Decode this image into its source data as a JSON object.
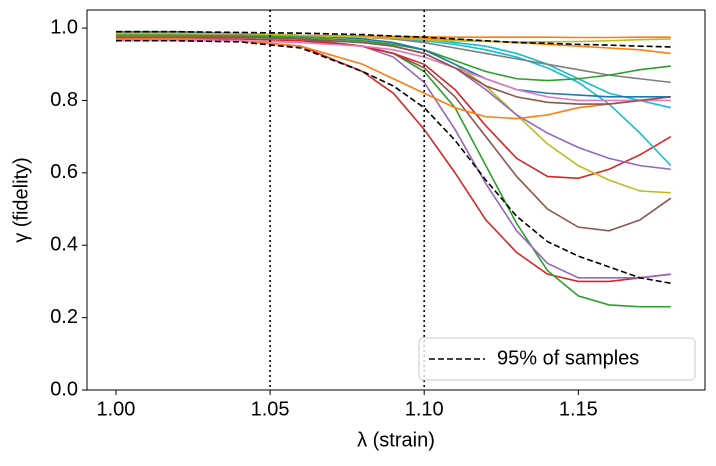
{
  "chart_data": {
    "type": "line",
    "xlabel": "λ (strain)",
    "ylabel": "γ (fidelity)",
    "x": [
      1.0,
      1.02,
      1.04,
      1.06,
      1.08,
      1.09,
      1.1,
      1.11,
      1.12,
      1.13,
      1.14,
      1.15,
      1.16,
      1.17,
      1.18
    ],
    "xlim": [
      0.9906,
      1.1911
    ],
    "ylim": [
      0,
      1.05
    ],
    "xticks": [
      {
        "value": 1.0,
        "label": "1.00"
      },
      {
        "value": 1.05,
        "label": "1.05"
      },
      {
        "value": 1.1,
        "label": "1.10"
      },
      {
        "value": 1.15,
        "label": "1.15"
      }
    ],
    "yticks": [
      {
        "value": 0,
        "label": "0.0"
      },
      {
        "value": 0.2,
        "label": "0.2"
      },
      {
        "value": 0.4,
        "label": "0.4"
      },
      {
        "value": 0.6,
        "label": "0.6"
      },
      {
        "value": 0.8,
        "label": "0.8"
      },
      {
        "value": 1.0,
        "label": "1.0"
      }
    ],
    "vlines": [
      1.05,
      1.1
    ],
    "legend": "lower right",
    "series": [
      {
        "color": "#d62728",
        "values": [
          0.97,
          0.97,
          0.965,
          0.95,
          0.88,
          0.82,
          0.72,
          0.6,
          0.47,
          0.38,
          0.32,
          0.3,
          0.3,
          0.31,
          0.32
        ]
      },
      {
        "color": "#2ca02c",
        "values": [
          0.98,
          0.98,
          0.978,
          0.97,
          0.95,
          0.93,
          0.88,
          0.78,
          0.62,
          0.46,
          0.33,
          0.26,
          0.235,
          0.23,
          0.23
        ]
      },
      {
        "color": "#9467bd",
        "values": [
          0.98,
          0.98,
          0.978,
          0.97,
          0.95,
          0.92,
          0.85,
          0.72,
          0.57,
          0.44,
          0.35,
          0.31,
          0.31,
          0.31,
          0.32
        ]
      },
      {
        "color": "#8c564b",
        "values": [
          0.98,
          0.98,
          0.975,
          0.97,
          0.95,
          0.93,
          0.89,
          0.81,
          0.7,
          0.59,
          0.5,
          0.45,
          0.44,
          0.47,
          0.53
        ]
      },
      {
        "color": "#d62728",
        "values": [
          0.97,
          0.97,
          0.97,
          0.965,
          0.95,
          0.93,
          0.9,
          0.83,
          0.73,
          0.64,
          0.59,
          0.585,
          0.61,
          0.65,
          0.7
        ]
      },
      {
        "color": "#bcbd22",
        "values": [
          0.98,
          0.98,
          0.978,
          0.975,
          0.965,
          0.955,
          0.94,
          0.9,
          0.84,
          0.76,
          0.68,
          0.62,
          0.58,
          0.55,
          0.545
        ]
      },
      {
        "color": "#9467bd",
        "values": [
          0.98,
          0.98,
          0.98,
          0.97,
          0.96,
          0.95,
          0.93,
          0.89,
          0.83,
          0.76,
          0.71,
          0.67,
          0.64,
          0.62,
          0.61
        ]
      },
      {
        "color": "#17becf",
        "values": [
          0.985,
          0.985,
          0.985,
          0.98,
          0.975,
          0.97,
          0.965,
          0.955,
          0.94,
          0.92,
          0.89,
          0.85,
          0.79,
          0.71,
          0.62
        ]
      },
      {
        "color": "#17becf",
        "values": [
          0.985,
          0.985,
          0.982,
          0.978,
          0.975,
          0.972,
          0.97,
          0.96,
          0.95,
          0.93,
          0.9,
          0.86,
          0.82,
          0.8,
          0.78
        ]
      },
      {
        "color": "#ff7f0e",
        "values": [
          0.97,
          0.97,
          0.965,
          0.95,
          0.9,
          0.86,
          0.82,
          0.78,
          0.755,
          0.75,
          0.76,
          0.78,
          0.79,
          0.8,
          0.81
        ]
      },
      {
        "color": "#ff7f0e",
        "values": [
          0.98,
          0.98,
          0.98,
          0.98,
          0.978,
          0.977,
          0.976,
          0.975,
          0.975,
          0.975,
          0.975,
          0.974,
          0.974,
          0.975,
          0.975
        ]
      },
      {
        "color": "#ff7f0e",
        "values": [
          0.985,
          0.985,
          0.983,
          0.98,
          0.978,
          0.975,
          0.972,
          0.968,
          0.964,
          0.96,
          0.955,
          0.95,
          0.945,
          0.94,
          0.93
        ]
      },
      {
        "color": "#7f7f7f",
        "values": [
          0.985,
          0.985,
          0.983,
          0.98,
          0.975,
          0.97,
          0.96,
          0.945,
          0.93,
          0.915,
          0.9,
          0.885,
          0.87,
          0.86,
          0.85
        ]
      },
      {
        "color": "#2ca02c",
        "values": [
          0.98,
          0.98,
          0.978,
          0.975,
          0.965,
          0.955,
          0.94,
          0.91,
          0.88,
          0.86,
          0.855,
          0.86,
          0.87,
          0.885,
          0.895
        ]
      },
      {
        "color": "#1f77b4",
        "values": [
          0.99,
          0.99,
          0.985,
          0.98,
          0.97,
          0.96,
          0.94,
          0.9,
          0.86,
          0.83,
          0.82,
          0.815,
          0.81,
          0.81,
          0.81
        ]
      },
      {
        "color": "#e377c2",
        "values": [
          0.965,
          0.965,
          0.965,
          0.96,
          0.95,
          0.94,
          0.92,
          0.89,
          0.86,
          0.83,
          0.81,
          0.8,
          0.8,
          0.8,
          0.8
        ]
      },
      {
        "color": "#8c564b",
        "values": [
          0.975,
          0.975,
          0.975,
          0.97,
          0.96,
          0.95,
          0.93,
          0.89,
          0.84,
          0.81,
          0.795,
          0.79,
          0.79,
          0.8,
          0.81
        ]
      },
      {
        "color": "#bcbd22",
        "values": [
          0.985,
          0.985,
          0.985,
          0.98,
          0.975,
          0.972,
          0.968,
          0.965,
          0.963,
          0.962,
          0.962,
          0.963,
          0.965,
          0.968,
          0.97
        ]
      },
      {
        "name": "95% of samples",
        "color": "#000000",
        "dash": true,
        "values": [
          0.965,
          0.965,
          0.962,
          0.945,
          0.88,
          0.84,
          0.78,
          0.69,
          0.58,
          0.48,
          0.41,
          0.37,
          0.34,
          0.31,
          0.295
        ]
      },
      {
        "color": "#000000",
        "dash": true,
        "values": [
          0.99,
          0.99,
          0.988,
          0.986,
          0.982,
          0.978,
          0.975,
          0.97,
          0.965,
          0.96,
          0.958,
          0.955,
          0.953,
          0.95,
          0.948
        ]
      }
    ]
  }
}
